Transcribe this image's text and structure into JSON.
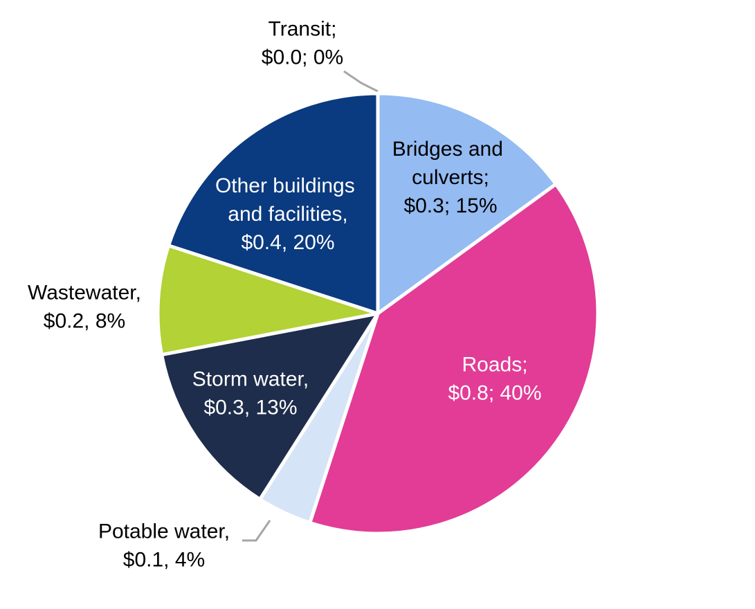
{
  "chart_data": {
    "type": "pie",
    "categories": [
      "Transit;",
      "Bridges and culverts;",
      "Roads;",
      "Potable water,",
      "Storm water,",
      "Wastewater,",
      "Other buildings and facilities,"
    ],
    "values": [
      0,
      15,
      40,
      4,
      13,
      8,
      20
    ],
    "value_labels": [
      "$0.0; 0%",
      "$0.3; 15%",
      "$0.8; 40%",
      "$0.1, 4%",
      "$0.3, 13%",
      "$0.2, 8%",
      "$0.4, 20%"
    ],
    "colors": [
      "#5b9bd5",
      "#94bbf2",
      "#e23c96",
      "#d6e4f8",
      "#1e2d4b",
      "#b2d235",
      "#0a3a7f"
    ]
  }
}
